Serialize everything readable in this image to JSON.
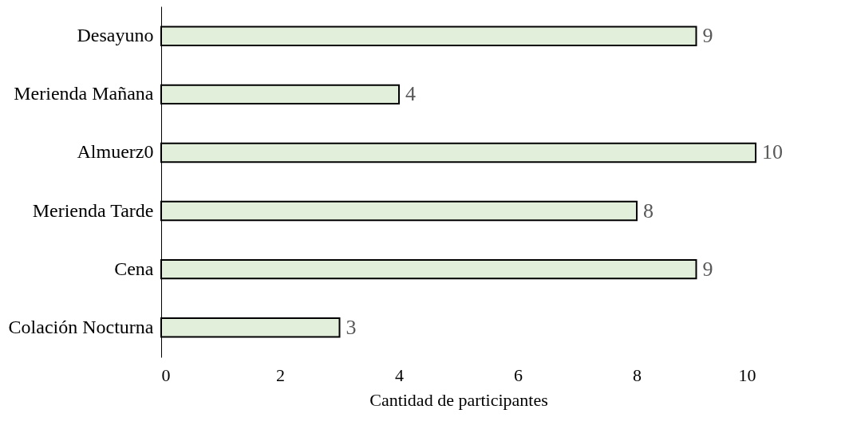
{
  "chart_data": {
    "type": "bar",
    "orientation": "horizontal",
    "categories": [
      "Desayuno",
      "Merienda Mañana",
      "Almuerz0",
      "Merienda Tarde",
      "Cena",
      "Colación Nocturna"
    ],
    "values": [
      9,
      4,
      10,
      8,
      9,
      3
    ],
    "color": "#e2efda",
    "xlim": [
      0,
      10
    ],
    "xticks": [
      0,
      2,
      4,
      6,
      8,
      10
    ],
    "xlabel": "Cantidad de participantes",
    "data_labels": true,
    "grid": false
  }
}
